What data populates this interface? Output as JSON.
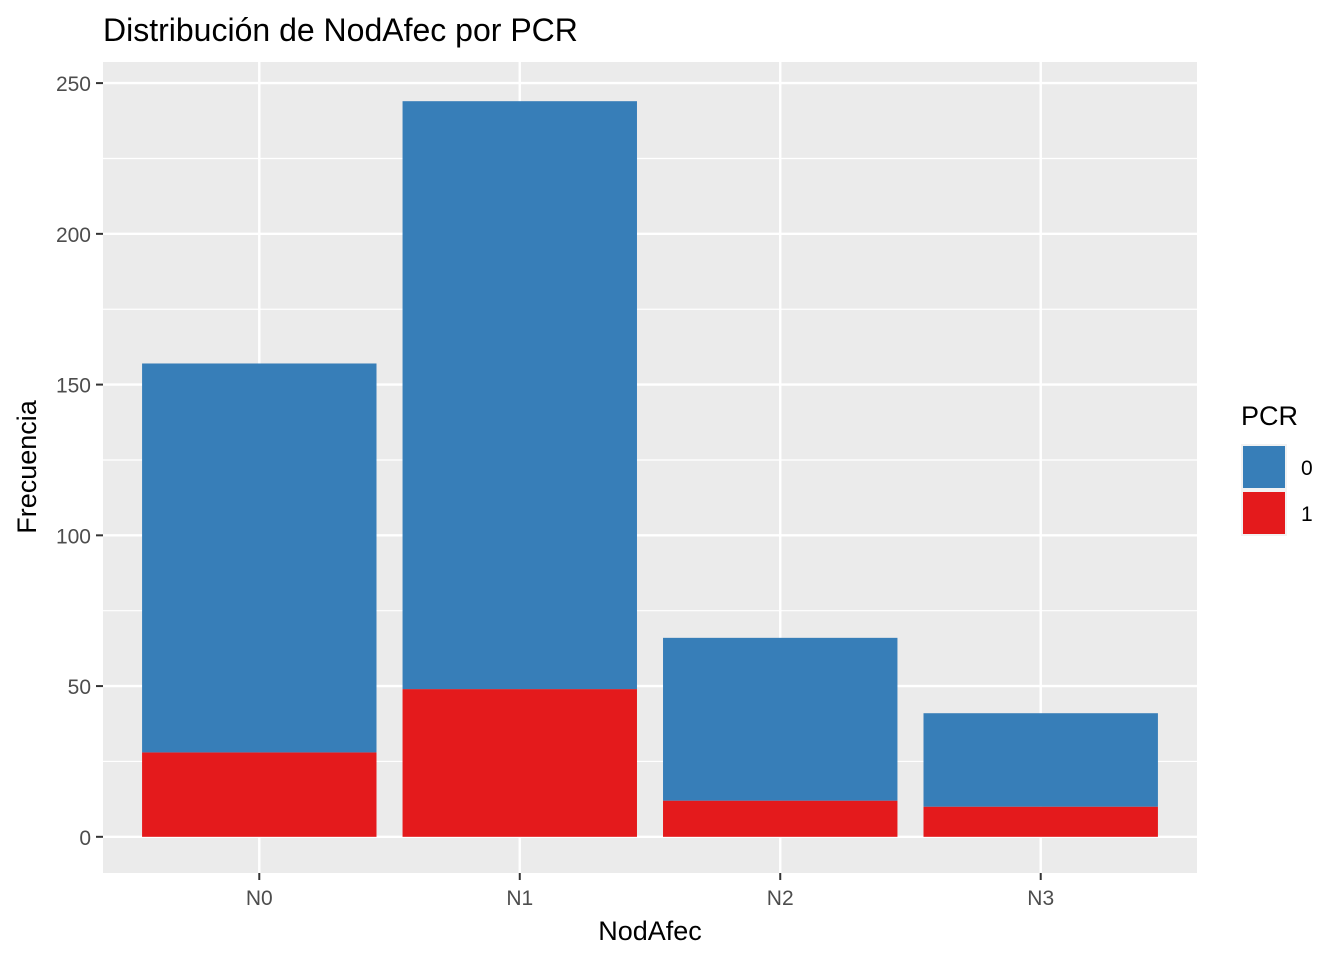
{
  "chart_data": {
    "type": "bar",
    "stacked": true,
    "title": "Distribución de NodAfec por PCR",
    "xlabel": "NodAfec",
    "ylabel": "Frecuencia",
    "categories": [
      "N0",
      "N1",
      "N2",
      "N3"
    ],
    "series": [
      {
        "name": "0",
        "values": [
          129,
          195,
          54,
          31
        ],
        "color": "#377EB8"
      },
      {
        "name": "1",
        "values": [
          28,
          49,
          12,
          10
        ],
        "color": "#E41A1C"
      }
    ],
    "ylim": [
      -12,
      257
    ],
    "y_ticks": [
      0,
      50,
      100,
      150,
      200,
      250
    ],
    "y_minor_ticks": [
      25,
      75,
      125,
      175,
      225
    ],
    "grid": true,
    "panel_background": "#EBEBEB",
    "grid_color": "#FFFFFF",
    "legend": {
      "title": "PCR",
      "position": "right",
      "entries": [
        "0",
        "1"
      ]
    }
  }
}
